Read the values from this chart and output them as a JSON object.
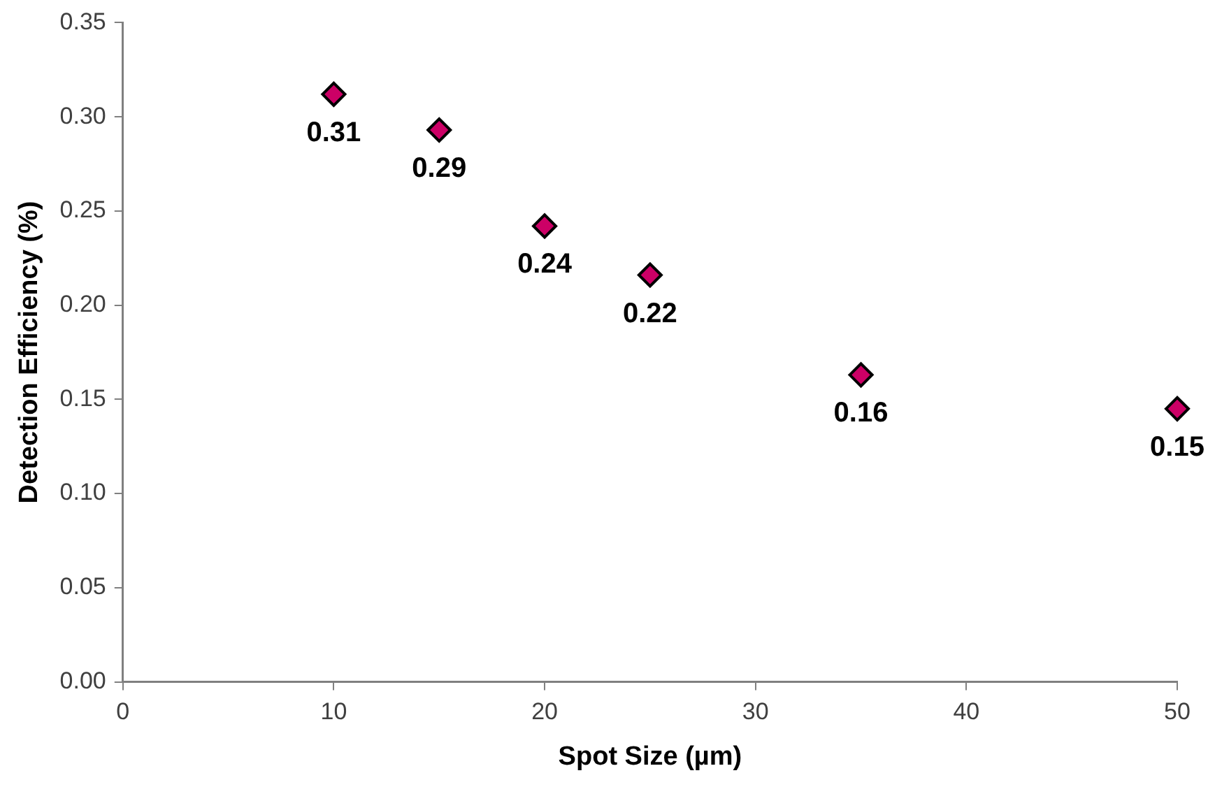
{
  "chart_data": {
    "type": "scatter",
    "xlabel": "Spot Size (µm)",
    "ylabel": "Detection Efficiency (%)",
    "x": [
      10,
      15,
      20,
      25,
      35,
      50
    ],
    "values": [
      0.312,
      0.293,
      0.242,
      0.216,
      0.163,
      0.145
    ],
    "value_labels": [
      "0.31",
      "0.29",
      "0.24",
      "0.22",
      "0.16",
      "0.15"
    ],
    "color": "#cc0066",
    "marker": "diamond",
    "grid": false,
    "xlim": [
      0,
      50
    ],
    "xticks": [
      0,
      10,
      20,
      30,
      40,
      50
    ],
    "ylim": [
      0,
      0.35
    ],
    "yticks": [
      {
        "value": 0,
        "label": "0.00"
      },
      {
        "value": 0.05,
        "label": "0.05"
      },
      {
        "value": 0.1,
        "label": "0.10"
      },
      {
        "value": 0.15,
        "label": "0.15"
      },
      {
        "value": 0.2,
        "label": "0.20"
      },
      {
        "value": 0.25,
        "label": "0.25"
      },
      {
        "value": 0.3,
        "label": "0.30"
      },
      {
        "value": 0.35,
        "label": "0.35"
      }
    ]
  }
}
